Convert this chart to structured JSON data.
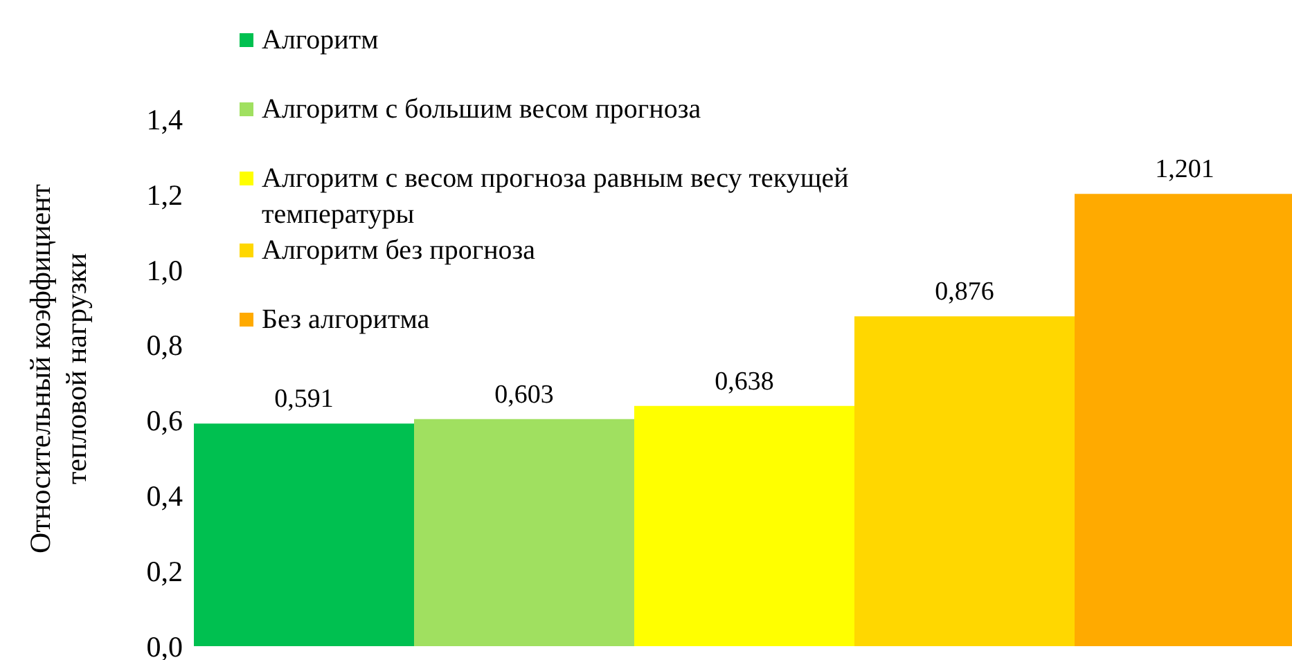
{
  "chart_data": {
    "type": "bar",
    "ylabel": "Относительный коэффициент\nтепловой нагрузки",
    "categories": [
      null
    ],
    "series": [
      {
        "name": "Алгоритм",
        "color": "#00c050",
        "values": [
          0.591
        ],
        "value_labels": [
          "0,591"
        ]
      },
      {
        "name": "Алгоритм с большим весом прогноза",
        "color": "#a0e060",
        "values": [
          0.603
        ],
        "value_labels": [
          "0,603"
        ]
      },
      {
        "name": "Алгоритм с весом прогноза равным весу текущей температуры",
        "color": "#ffff00",
        "values": [
          0.638
        ],
        "value_labels": [
          "0,638"
        ]
      },
      {
        "name": "Алгоритм без прогноза",
        "color": "#ffd700",
        "values": [
          0.876
        ],
        "value_labels": [
          "0,876"
        ]
      },
      {
        "name": "Без алгоритма",
        "color": "#ffaa00",
        "values": [
          1.201
        ],
        "value_labels": [
          "1,201"
        ]
      }
    ],
    "ylim": [
      0,
      1.4
    ],
    "yticks": [
      {
        "value": 0,
        "label": "0,0"
      },
      {
        "value": 0.2,
        "label": "0,2"
      },
      {
        "value": 0.4,
        "label": "0,4"
      },
      {
        "value": 0.6,
        "label": "0,6"
      },
      {
        "value": 0.8,
        "label": "0,8"
      },
      {
        "value": 1.0,
        "label": "1,0"
      },
      {
        "value": 1.2,
        "label": "1,2"
      },
      {
        "value": 1.4,
        "label": "1,4"
      }
    ],
    "grid": false,
    "legend": "top left"
  }
}
